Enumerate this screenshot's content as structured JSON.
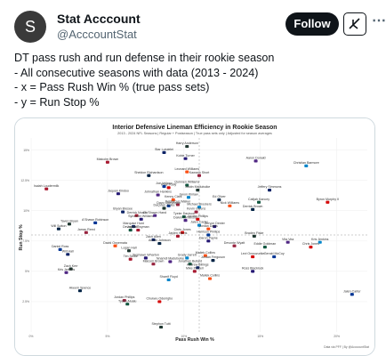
{
  "header": {
    "avatar_letter": "S",
    "display_name": "Stat Acccount",
    "handle": "@AcccountStat",
    "follow_label": "Follow",
    "grok_icon": "grok-icon",
    "more_icon": "more-icon"
  },
  "tweet": {
    "lines": [
      "DT pass rush and run defense in their rookie season",
      "- All consecutive seasons with data (2013 - 2024)",
      "- x = Pass Rush Win % (true pass sets)",
      "- y = Run Stop %"
    ]
  },
  "chart_data": {
    "type": "scatter",
    "title": "Interior Defensive Lineman Efficiency in Rookie Season",
    "subtitle": "2013 - 2024 NFL Seasons | Regular + Postseason | True pass sets only | Adjusted for season averages",
    "xlabel": "Pass Rush Win %",
    "ylabel": "Run Stop %",
    "xticks": [
      "0%",
      "5%",
      "10%",
      "15%",
      "20%"
    ],
    "yticks": [
      "15%",
      "12.5%",
      "10%",
      "7.5%",
      "5%",
      "2.5%"
    ],
    "xlim": [
      0,
      22
    ],
    "ylim": [
      0,
      16
    ],
    "credit": "Data via PFF | By @AcccountStat",
    "points": [
      {
        "name": "Harry Anderson",
        "x": 10.2,
        "y": 15.3
      },
      {
        "name": "Star Lotulelei",
        "x": 8.7,
        "y": 14.8
      },
      {
        "name": "Malcolm Brown",
        "x": 5.0,
        "y": 14.0
      },
      {
        "name": "Kobie Turner",
        "x": 10.1,
        "y": 14.3
      },
      {
        "name": "Aaron Donald",
        "x": 14.7,
        "y": 14.1
      },
      {
        "name": "Christian Barmore",
        "x": 18.0,
        "y": 13.7
      },
      {
        "name": "Leonard Williams",
        "x": 10.2,
        "y": 13.2
      },
      {
        "name": "Sheldon Richardson",
        "x": 7.7,
        "y": 12.9
      },
      {
        "name": "Kawann Short",
        "x": 11.0,
        "y": 12.9
      },
      {
        "name": "Quinnen Williams",
        "x": 10.2,
        "y": 12.1
      },
      {
        "name": "Ryan Kelly",
        "x": 9.0,
        "y": 11.9
      },
      {
        "name": "Joe Vellano",
        "x": 8.7,
        "y": 12.0
      },
      {
        "name": "Justin Madubuike",
        "x": 10.9,
        "y": 11.7
      },
      {
        "name": "Jeffery Simmons",
        "x": 15.6,
        "y": 11.7
      },
      {
        "name": "Isaiah Loudermilk",
        "x": 1.0,
        "y": 11.8
      },
      {
        "name": "Jaquan Kindoo",
        "x": 5.7,
        "y": 11.4
      },
      {
        "name": "Johnathan Hankins",
        "x": 8.3,
        "y": 11.3
      },
      {
        "name": "Javon Kinlaw",
        "x": 10.3,
        "y": 11.1
      },
      {
        "name": "Kenny Clark",
        "x": 9.3,
        "y": 10.9
      },
      {
        "name": "Ed Oliver",
        "x": 12.3,
        "y": 10.9
      },
      {
        "name": "DeMarcus Walker",
        "x": 9.6,
        "y": 10.5
      },
      {
        "name": "Calijah Kancey",
        "x": 14.9,
        "y": 10.7
      },
      {
        "name": "Byron Murphy II",
        "x": 19.4,
        "y": 10.7
      },
      {
        "name": "Dayo Odeyingbo",
        "x": 9.0,
        "y": 10.4
      },
      {
        "name": "DaQuan Jones",
        "x": 8.7,
        "y": 10.2
      },
      {
        "name": "Bryan Bresee",
        "x": 6.0,
        "y": 9.9
      },
      {
        "name": "Derrick Nnadi",
        "x": 6.9,
        "y": 9.6
      },
      {
        "name": "Sylvester Williams",
        "x": 7.2,
        "y": 9.3
      },
      {
        "name": "Da'Shawn Hand",
        "x": 8.1,
        "y": 9.6
      },
      {
        "name": "Michael Brockers",
        "x": 11.0,
        "y": 10.3
      },
      {
        "name": "Nick Williams",
        "x": 13.0,
        "y": 10.4
      },
      {
        "name": "Derrick Brown",
        "x": 14.5,
        "y": 10.1
      },
      {
        "name": "Kevin Givens",
        "x": 10.8,
        "y": 9.9
      },
      {
        "name": "Tyeler Davison",
        "x": 10.0,
        "y": 9.5
      },
      {
        "name": "Jordan Phillips",
        "x": 10.9,
        "y": 9.3
      },
      {
        "name": "A'Shawn Robinson",
        "x": 4.2,
        "y": 9.0
      },
      {
        "name": "Taven Bryan",
        "x": 2.5,
        "y": 8.9
      },
      {
        "name": "Marquise Hunt",
        "x": 6.7,
        "y": 8.7
      },
      {
        "name": "Jaylen Twyman",
        "x": 7.0,
        "y": 8.4
      },
      {
        "name": "Gervon Dexter",
        "x": 12.0,
        "y": 8.7
      },
      {
        "name": "Dalvin Tomlinson",
        "x": 10.1,
        "y": 9.2
      },
      {
        "name": "Jalen Carter",
        "x": 11.0,
        "y": 8.8
      },
      {
        "name": "Jordan Davis",
        "x": 11.6,
        "y": 8.5
      },
      {
        "name": "Will Sutton",
        "x": 1.8,
        "y": 8.5
      },
      {
        "name": "Jarran Reed",
        "x": 3.6,
        "y": 8.2
      },
      {
        "name": "Devon Still",
        "x": 6.5,
        "y": 8.4
      },
      {
        "name": "Chris Jones",
        "x": 9.9,
        "y": 8.2
      },
      {
        "name": "Harrison Phillips",
        "x": 11.6,
        "y": 8.0
      },
      {
        "name": "Braden Fiske",
        "x": 14.6,
        "y": 7.9
      },
      {
        "name": "Zach Allen",
        "x": 8.0,
        "y": 7.6
      },
      {
        "name": "Jaylen Harris",
        "x": 9.6,
        "y": 7.9
      },
      {
        "name": "Daron Payne",
        "x": 11.6,
        "y": 7.5
      },
      {
        "name": "Vita Vea",
        "x": 16.8,
        "y": 7.4
      },
      {
        "name": "Kris Jenkins",
        "x": 18.9,
        "y": 7.4
      },
      {
        "name": "David Onyemata",
        "x": 5.5,
        "y": 7.1
      },
      {
        "name": "Austin Johnson",
        "x": 8.4,
        "y": 7.3
      },
      {
        "name": "Devonte Wyatt",
        "x": 13.3,
        "y": 7.1
      },
      {
        "name": "Eddie Goldman",
        "x": 15.3,
        "y": 7.0
      },
      {
        "name": "Chris Jones",
        "x": 18.3,
        "y": 7.0
      },
      {
        "name": "Daniel Ross",
        "x": 1.9,
        "y": 6.8
      },
      {
        "name": "Logan Hall",
        "x": 6.4,
        "y": 6.7
      },
      {
        "name": "Will Hall",
        "x": 2.4,
        "y": 6.4
      },
      {
        "name": "Tim Settle",
        "x": 6.5,
        "y": 6.0
      },
      {
        "name": "Tershawn Wharton",
        "x": 7.5,
        "y": 6.1
      },
      {
        "name": "Nnamdi Madubuike",
        "x": 9.1,
        "y": 5.8
      },
      {
        "name": "Grady Jarrett",
        "x": 10.2,
        "y": 6.1
      },
      {
        "name": "Maliek Collins",
        "x": 11.4,
        "y": 6.3
      },
      {
        "name": "Jordan Ferguson",
        "x": 11.9,
        "y": 5.9
      },
      {
        "name": "Malcom Brown",
        "x": 8.0,
        "y": 5.6
      },
      {
        "name": "Jonathan Bullard",
        "x": 10.4,
        "y": 5.6
      },
      {
        "name": "Levi Onwuzurike",
        "x": 14.5,
        "y": 6.2
      },
      {
        "name": "Gerald McCoy",
        "x": 15.9,
        "y": 6.2
      },
      {
        "name": "Zach Kerr",
        "x": 2.6,
        "y": 5.2
      },
      {
        "name": "Andrew Billings",
        "x": 10.9,
        "y": 5.3
      },
      {
        "name": "Mike Purcell",
        "x": 10.7,
        "y": 5.0
      },
      {
        "name": "Ross Blacklock",
        "x": 14.5,
        "y": 5.0
      },
      {
        "name": "Kris Jenkins",
        "x": 2.3,
        "y": 4.9
      },
      {
        "name": "Sharrif Floyd",
        "x": 9.0,
        "y": 4.3
      },
      {
        "name": "Maliek Collins",
        "x": 11.7,
        "y": 4.4
      },
      {
        "name": "Akeem Spence",
        "x": 3.2,
        "y": 3.4
      },
      {
        "name": "Jordan Phillips",
        "x": 6.1,
        "y": 2.6
      },
      {
        "name": "Tyson Alualu",
        "x": 6.3,
        "y": 2.3
      },
      {
        "name": "Chukwu Odenigbo",
        "x": 8.4,
        "y": 2.5
      },
      {
        "name": "Jalen Carter",
        "x": 21.0,
        "y": 3.1
      },
      {
        "name": "Stephon Tuitt",
        "x": 8.5,
        "y": 0.4
      }
    ]
  }
}
